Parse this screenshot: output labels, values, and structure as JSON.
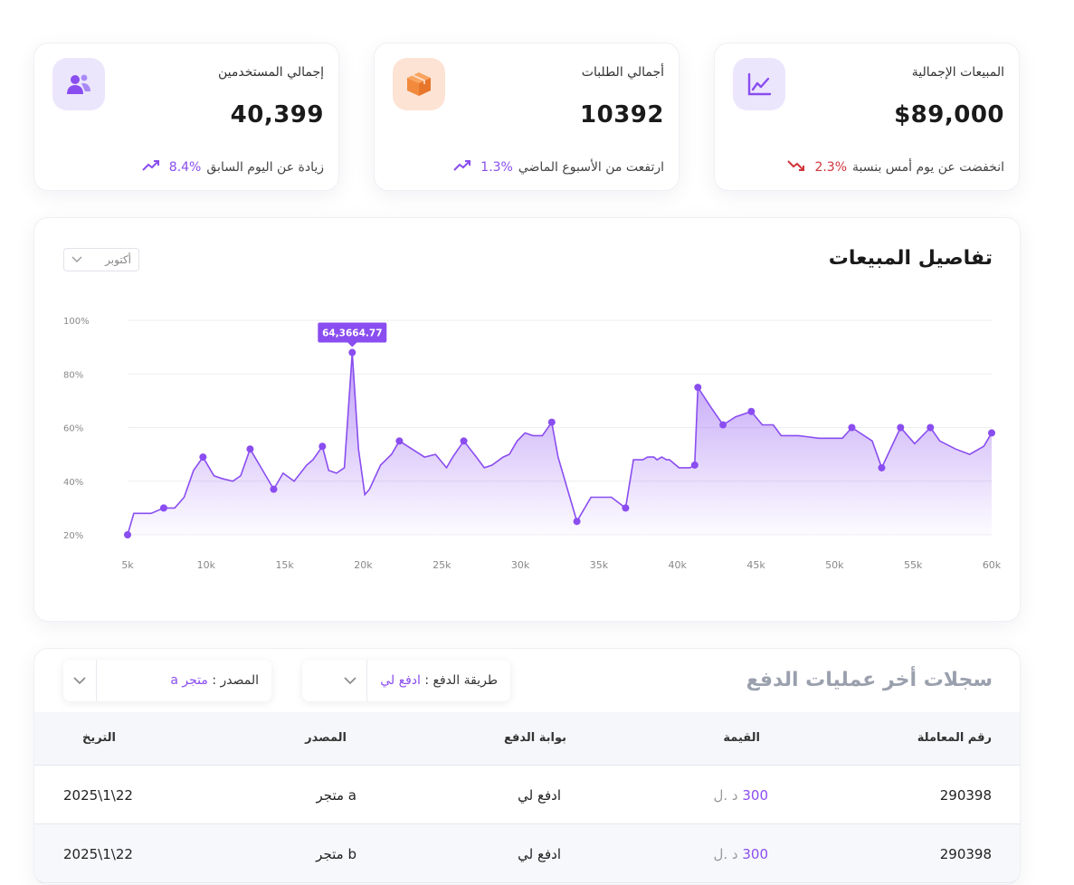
{
  "stats": [
    {
      "title": "المبيعات الإجمالية",
      "value": "$89,000",
      "pct": "2.3%",
      "trend_text": "انخفضت عن يوم أمس بنسبة",
      "direction": "down",
      "icon": "line-chart-icon",
      "icon_bg": "#ece6fd",
      "icon_color": "#8a4df0"
    },
    {
      "title": "أجمالي الطلبات",
      "value": "10392",
      "pct": "1.3%",
      "trend_text": "ارتفعت من الأسبوع الماضي",
      "direction": "up",
      "icon": "box-icon",
      "icon_bg": "#fde3d4",
      "icon_color": "#f28a3d"
    },
    {
      "title": "إجمالي المستخدمين",
      "value": "40,399",
      "pct": "8.4%",
      "trend_text": "زيادة عن اليوم السابق",
      "direction": "up",
      "icon": "users-icon",
      "icon_bg": "#ece6fd",
      "icon_color": "#8a4df0"
    }
  ],
  "chart": {
    "title": "تفاصيل المبيعات",
    "month": "أكتوبر",
    "tooltip": "64,3664.77",
    "accent": "#8a4df0"
  },
  "chart_data": {
    "type": "area",
    "title": "تفاصيل المبيعات",
    "x_ticks": [
      "5k",
      "10k",
      "15k",
      "20k",
      "25k",
      "30k",
      "35k",
      "40k",
      "45k",
      "50k",
      "55k",
      "60k"
    ],
    "y_ticks": [
      "20%",
      "40%",
      "60%",
      "80%",
      "100%"
    ],
    "xlim": [
      5000,
      60000
    ],
    "ylim": [
      20,
      100
    ],
    "grid": true,
    "x": [
      5000,
      5400,
      6500,
      7300,
      8000,
      8600,
      9200,
      9800,
      10500,
      11000,
      11700,
      12200,
      12800,
      13500,
      14300,
      14900,
      15600,
      16400,
      16800,
      17400,
      17800,
      18300,
      18800,
      19300,
      19700,
      20100,
      20400,
      21100,
      21800,
      22300,
      23100,
      23900,
      24600,
      25300,
      25700,
      26400,
      27200,
      27700,
      28200,
      28900,
      29300,
      29800,
      30300,
      30800,
      31400,
      32000,
      32400,
      33600,
      34500,
      35800,
      36700,
      37200,
      37800,
      38100,
      38500,
      38700,
      39000,
      39300,
      39500,
      40100,
      40800,
      41100,
      41300,
      42200,
      42900,
      43700,
      44700,
      45400,
      46100,
      46600,
      47700,
      49000,
      50500,
      51100,
      52400,
      53000,
      54200,
      55100,
      56100,
      56700,
      57700,
      58600,
      59500,
      60000
    ],
    "y": [
      20,
      28,
      28,
      30,
      30,
      34,
      44,
      49,
      42,
      41,
      40,
      42,
      52,
      45,
      37,
      43,
      40,
      46,
      48,
      53,
      44,
      43,
      45,
      88,
      52,
      35,
      37,
      46,
      50,
      55,
      52,
      49,
      50,
      45,
      49,
      55,
      49,
      45,
      46,
      49,
      50,
      55,
      58,
      57,
      57,
      62,
      49,
      25,
      34,
      34,
      30,
      48,
      48,
      49,
      49,
      48,
      49,
      48,
      48,
      45,
      45,
      46,
      75,
      67,
      61,
      64,
      66,
      61,
      61,
      57,
      57,
      56,
      56,
      60,
      55,
      45,
      60,
      54,
      60,
      55,
      52,
      50,
      53,
      58
    ]
  },
  "table": {
    "title": "سجلات أخر عمليات الدفع",
    "filter_payment_label": "طريقة الدفع :",
    "filter_payment_value": "ادفع لي",
    "filter_source_label": "المصدر :",
    "filter_source_value": "متجر a",
    "headers": {
      "id": "رقم المعاملة",
      "amount": "القيمة",
      "gateway": "بوابة الدفع",
      "source": "المصدر",
      "date": "التريخ"
    },
    "rows": [
      {
        "id": "290398",
        "amount": "300",
        "currency": "د .ل",
        "gateway": "ادفع لي",
        "source": "متجر a",
        "date": "2025\\1\\22"
      },
      {
        "id": "290398",
        "amount": "300",
        "currency": "د .ل",
        "gateway": "ادفع لي",
        "source": "متجر b",
        "date": "2025\\1\\22"
      }
    ]
  }
}
